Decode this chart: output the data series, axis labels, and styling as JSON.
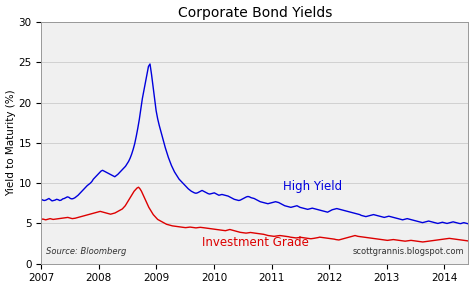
{
  "title": "Corporate Bond Yields",
  "ylabel": "Yield to Maturity (%)",
  "source_text": "Source: Bloomberg",
  "credit_text": "scottgrannis.blogspot.com",
  "ylim": [
    0,
    30
  ],
  "yticks": [
    0,
    5,
    10,
    15,
    20,
    25,
    30
  ],
  "fig_bg_color": "#ffffff",
  "plot_bg_color": "#f0f0f0",
  "high_yield_color": "#0000dd",
  "inv_grade_color": "#dd0000",
  "high_yield_label": "High Yield",
  "inv_grade_label": "Investment Grade",
  "xstart": 2007.0,
  "xend": 2014.42,
  "xtick_years": [
    2007,
    2008,
    2009,
    2010,
    2011,
    2012,
    2013,
    2014
  ],
  "high_yield_data": [
    8.0,
    7.9,
    7.85,
    7.9,
    8.0,
    8.1,
    7.95,
    7.8,
    7.85,
    7.9,
    8.0,
    7.95,
    7.85,
    7.9,
    8.05,
    8.1,
    8.2,
    8.3,
    8.25,
    8.1,
    8.05,
    8.1,
    8.2,
    8.35,
    8.5,
    8.7,
    8.9,
    9.1,
    9.3,
    9.5,
    9.7,
    9.85,
    10.0,
    10.2,
    10.5,
    10.7,
    10.9,
    11.1,
    11.3,
    11.5,
    11.6,
    11.5,
    11.4,
    11.3,
    11.2,
    11.1,
    11.0,
    10.9,
    10.8,
    10.95,
    11.1,
    11.3,
    11.5,
    11.7,
    11.9,
    12.1,
    12.4,
    12.7,
    13.1,
    13.6,
    14.2,
    14.9,
    15.8,
    16.8,
    17.9,
    19.2,
    20.5,
    21.5,
    22.5,
    23.5,
    24.5,
    24.8,
    23.5,
    22.0,
    20.5,
    19.0,
    18.0,
    17.2,
    16.5,
    15.8,
    15.1,
    14.4,
    13.8,
    13.2,
    12.7,
    12.2,
    11.8,
    11.4,
    11.1,
    10.8,
    10.5,
    10.3,
    10.1,
    9.9,
    9.7,
    9.5,
    9.3,
    9.15,
    9.0,
    8.9,
    8.8,
    8.75,
    8.8,
    8.9,
    9.0,
    9.1,
    9.0,
    8.9,
    8.8,
    8.7,
    8.65,
    8.7,
    8.75,
    8.8,
    8.7,
    8.6,
    8.5,
    8.55,
    8.6,
    8.55,
    8.5,
    8.45,
    8.4,
    8.3,
    8.2,
    8.1,
    8.0,
    7.95,
    7.9,
    7.85,
    7.9,
    8.0,
    8.1,
    8.2,
    8.3,
    8.35,
    8.3,
    8.2,
    8.15,
    8.1,
    8.0,
    7.9,
    7.8,
    7.7,
    7.65,
    7.6,
    7.55,
    7.5,
    7.45,
    7.5,
    7.55,
    7.6,
    7.65,
    7.7,
    7.65,
    7.6,
    7.5,
    7.4,
    7.3,
    7.2,
    7.15,
    7.1,
    7.05,
    7.0,
    7.05,
    7.1,
    7.15,
    7.2,
    7.1,
    7.0,
    6.95,
    6.9,
    6.85,
    6.8,
    6.75,
    6.8,
    6.85,
    6.9,
    6.85,
    6.8,
    6.75,
    6.7,
    6.65,
    6.6,
    6.55,
    6.5,
    6.45,
    6.4,
    6.5,
    6.6,
    6.7,
    6.75,
    6.8,
    6.85,
    6.8,
    6.75,
    6.7,
    6.65,
    6.6,
    6.55,
    6.5,
    6.45,
    6.4,
    6.35,
    6.3,
    6.25,
    6.2,
    6.15,
    6.1,
    6.0,
    5.95,
    5.9,
    5.85,
    5.9,
    5.95,
    6.0,
    6.05,
    6.1,
    6.05,
    6.0,
    5.95,
    5.9,
    5.85,
    5.8,
    5.75,
    5.8,
    5.85,
    5.9,
    5.85,
    5.8,
    5.75,
    5.7,
    5.65,
    5.6,
    5.55,
    5.5,
    5.45,
    5.5,
    5.55,
    5.6,
    5.55,
    5.5,
    5.45,
    5.4,
    5.35,
    5.3,
    5.25,
    5.2,
    5.15,
    5.1,
    5.15,
    5.2,
    5.25,
    5.3,
    5.25,
    5.2,
    5.15,
    5.1,
    5.05,
    5.0,
    5.05,
    5.1,
    5.15,
    5.1,
    5.05,
    5.0,
    5.05,
    5.1,
    5.15,
    5.2,
    5.15,
    5.1,
    5.05,
    5.0,
    4.98,
    5.05,
    5.1,
    5.05,
    5.0,
    4.95
  ],
  "inv_grade_data": [
    5.5,
    5.55,
    5.5,
    5.45,
    5.5,
    5.55,
    5.6,
    5.55,
    5.5,
    5.52,
    5.55,
    5.58,
    5.6,
    5.62,
    5.65,
    5.68,
    5.7,
    5.72,
    5.75,
    5.7,
    5.65,
    5.6,
    5.62,
    5.65,
    5.7,
    5.75,
    5.8,
    5.85,
    5.9,
    5.95,
    6.0,
    6.05,
    6.1,
    6.15,
    6.2,
    6.25,
    6.3,
    6.35,
    6.4,
    6.45,
    6.5,
    6.45,
    6.4,
    6.35,
    6.3,
    6.25,
    6.2,
    6.15,
    6.2,
    6.25,
    6.3,
    6.4,
    6.5,
    6.6,
    6.7,
    6.8,
    7.0,
    7.2,
    7.5,
    7.8,
    8.1,
    8.4,
    8.7,
    9.0,
    9.2,
    9.4,
    9.5,
    9.3,
    9.0,
    8.6,
    8.2,
    7.8,
    7.4,
    7.0,
    6.7,
    6.4,
    6.1,
    5.9,
    5.7,
    5.5,
    5.4,
    5.3,
    5.2,
    5.1,
    5.0,
    4.9,
    4.85,
    4.8,
    4.75,
    4.7,
    4.68,
    4.65,
    4.62,
    4.6,
    4.58,
    4.55,
    4.52,
    4.5,
    4.48,
    4.5,
    4.52,
    4.55,
    4.52,
    4.5,
    4.48,
    4.45,
    4.48,
    4.5,
    4.52,
    4.5,
    4.48,
    4.45,
    4.42,
    4.4,
    4.38,
    4.35,
    4.32,
    4.3,
    4.28,
    4.25,
    4.22,
    4.2,
    4.18,
    4.15,
    4.12,
    4.1,
    4.15,
    4.2,
    4.25,
    4.2,
    4.15,
    4.1,
    4.05,
    4.0,
    3.95,
    3.9,
    3.88,
    3.85,
    3.82,
    3.8,
    3.82,
    3.85,
    3.88,
    3.85,
    3.82,
    3.8,
    3.78,
    3.75,
    3.72,
    3.7,
    3.68,
    3.65,
    3.6,
    3.55,
    3.5,
    3.48,
    3.45,
    3.42,
    3.4,
    3.42,
    3.45,
    3.48,
    3.5,
    3.48,
    3.45,
    3.42,
    3.4,
    3.38,
    3.35,
    3.3,
    3.28,
    3.25,
    3.22,
    3.2,
    3.22,
    3.25,
    3.28,
    3.25,
    3.22,
    3.2,
    3.18,
    3.15,
    3.12,
    3.1,
    3.12,
    3.15,
    3.18,
    3.2,
    3.25,
    3.3,
    3.28,
    3.25,
    3.22,
    3.2,
    3.18,
    3.15,
    3.12,
    3.1,
    3.08,
    3.05,
    3.0,
    2.98,
    2.95,
    3.0,
    3.05,
    3.1,
    3.15,
    3.2,
    3.25,
    3.3,
    3.35,
    3.4,
    3.45,
    3.5,
    3.45,
    3.4,
    3.38,
    3.35,
    3.32,
    3.3,
    3.28,
    3.25,
    3.22,
    3.2,
    3.18,
    3.15,
    3.12,
    3.1,
    3.08,
    3.05,
    3.02,
    3.0,
    2.98,
    2.95,
    2.92,
    2.9,
    2.92,
    2.95,
    2.98,
    3.0,
    2.98,
    2.95,
    2.92,
    2.9,
    2.88,
    2.85,
    2.82,
    2.8,
    2.82,
    2.85,
    2.88,
    2.9,
    2.88,
    2.85,
    2.82,
    2.8,
    2.78,
    2.75,
    2.72,
    2.7,
    2.72,
    2.75,
    2.78,
    2.8,
    2.82,
    2.85,
    2.88,
    2.9,
    2.92,
    2.95,
    2.98,
    3.0,
    3.02,
    3.05,
    3.08,
    3.1,
    3.12,
    3.15,
    3.12,
    3.1,
    3.08,
    3.05,
    3.02,
    3.0,
    2.98,
    2.95,
    2.92,
    2.9,
    2.88,
    2.85,
    2.82
  ]
}
